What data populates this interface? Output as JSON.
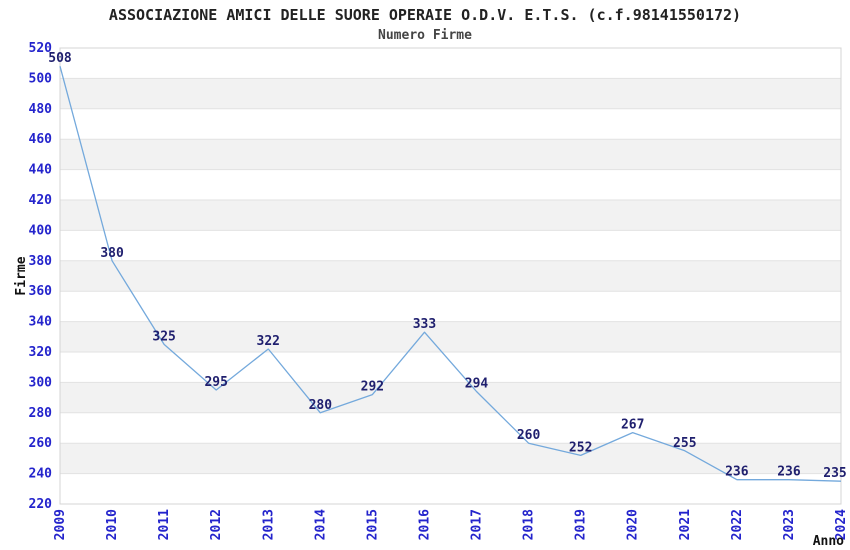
{
  "chart_data": {
    "type": "line",
    "title": "ASSOCIAZIONE AMICI DELLE SUORE OPERAIE O.D.V. E.T.S. (c.f.98141550172)",
    "subtitle": "Numero Firme",
    "xlabel": "Anno",
    "ylabel": "Firme",
    "categories": [
      "2009",
      "2010",
      "2011",
      "2012",
      "2013",
      "2014",
      "2015",
      "2016",
      "2017",
      "2018",
      "2019",
      "2020",
      "2021",
      "2022",
      "2023",
      "2024"
    ],
    "values": [
      508,
      380,
      325,
      295,
      322,
      280,
      292,
      333,
      294,
      260,
      252,
      267,
      255,
      236,
      236,
      235
    ],
    "ylim": [
      220,
      520
    ],
    "ytick_step": 20,
    "yticks": [
      220,
      240,
      260,
      280,
      300,
      320,
      340,
      360,
      380,
      400,
      420,
      440,
      460,
      480,
      500,
      520
    ],
    "grid": true,
    "legend": false,
    "point_labels_visible": true,
    "colors": {
      "line": "#74a9dc",
      "tick_label": "#2424cc",
      "point_label": "#1f1f6e",
      "band": "#f2f2f2",
      "gridline": "#e2e2e2",
      "border": "#d4d4d4",
      "title": "#222222",
      "subtitle": "#444444",
      "axis_label": "#111111",
      "background": "#ffffff"
    }
  }
}
